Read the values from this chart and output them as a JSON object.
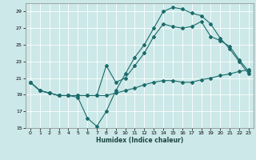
{
  "xlabel": "Humidex (Indice chaleur)",
  "bg_color": "#cce8e8",
  "grid_color": "#b8d8d8",
  "line_color": "#1a6b6b",
  "xlim": [
    -0.5,
    23.5
  ],
  "ylim": [
    15,
    30
  ],
  "yticks": [
    15,
    17,
    19,
    21,
    23,
    25,
    27,
    29
  ],
  "xticks": [
    0,
    1,
    2,
    3,
    4,
    5,
    6,
    7,
    8,
    9,
    10,
    11,
    12,
    13,
    14,
    15,
    16,
    17,
    18,
    19,
    20,
    21,
    22,
    23
  ],
  "line1_x": [
    0,
    1,
    2,
    3,
    4,
    5,
    6,
    7,
    8,
    9,
    10,
    11,
    12,
    13,
    14,
    15,
    16,
    17,
    18,
    19,
    20,
    21,
    22,
    23
  ],
  "line1_y": [
    20.5,
    19.5,
    19.2,
    18.9,
    18.9,
    18.9,
    18.9,
    18.9,
    18.9,
    19.2,
    19.5,
    19.8,
    20.2,
    20.5,
    20.7,
    20.7,
    20.5,
    20.5,
    20.8,
    21.0,
    21.3,
    21.5,
    21.8,
    22.0
  ],
  "line2_x": [
    0,
    1,
    2,
    3,
    4,
    5,
    6,
    7,
    8,
    9,
    10,
    11,
    12,
    13,
    14,
    15,
    16,
    17,
    18,
    19,
    20,
    21,
    22,
    23
  ],
  "line2_y": [
    20.5,
    19.5,
    19.2,
    18.9,
    18.9,
    18.7,
    16.2,
    15.2,
    17.0,
    19.5,
    21.5,
    23.5,
    25.0,
    27.0,
    29.0,
    29.5,
    29.3,
    28.8,
    28.5,
    27.5,
    25.8,
    24.5,
    23.0,
    21.5
  ],
  "line3_x": [
    0,
    1,
    2,
    3,
    4,
    5,
    6,
    7,
    8,
    9,
    10,
    11,
    12,
    13,
    14,
    15,
    16,
    17,
    18,
    19,
    20,
    21,
    22,
    23
  ],
  "line3_y": [
    20.5,
    19.5,
    19.2,
    18.9,
    18.9,
    18.9,
    18.9,
    18.9,
    22.5,
    20.5,
    21.0,
    22.5,
    24.0,
    26.0,
    27.5,
    27.2,
    27.0,
    27.2,
    27.8,
    26.0,
    25.5,
    24.8,
    23.2,
    21.8
  ]
}
